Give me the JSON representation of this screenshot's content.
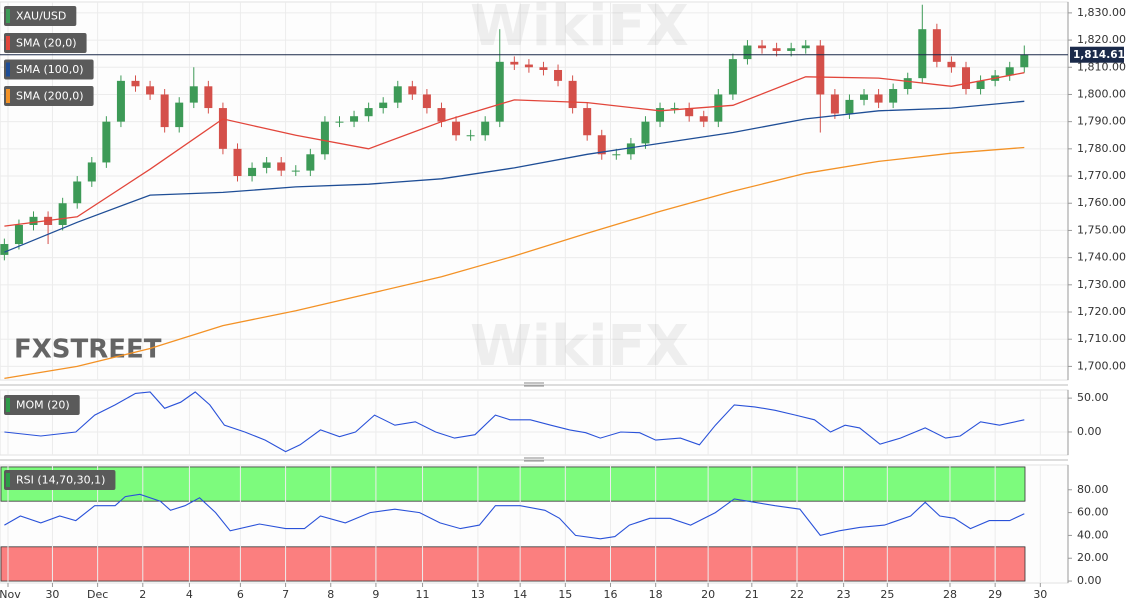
{
  "chart_data": [
    {
      "type": "candlestick",
      "title": "XAU/USD",
      "xlim": [
        -0.3,
        73.0
      ],
      "ylim": [
        1695,
        1834
      ],
      "yticks": [
        {
          "value": 1700,
          "label": "1,700.00"
        },
        {
          "value": 1710,
          "label": "1,710.00"
        },
        {
          "value": 1720,
          "label": "1,720.00"
        },
        {
          "value": 1730,
          "label": "1,730.00"
        },
        {
          "value": 1740,
          "label": "1,740.00"
        },
        {
          "value": 1750,
          "label": "1,750.00"
        },
        {
          "value": 1760,
          "label": "1,760.00"
        },
        {
          "value": 1770,
          "label": "1,770.00"
        },
        {
          "value": 1780,
          "label": "1,780.00"
        },
        {
          "value": 1790,
          "label": "1,790.00"
        },
        {
          "value": 1800,
          "label": "1,800.00"
        },
        {
          "value": 1810,
          "label": "1,810.00"
        },
        {
          "value": 1820,
          "label": "1,820.00"
        },
        {
          "value": 1830,
          "label": "1,830.00"
        }
      ],
      "grid": true,
      "up_color": "#3d9a57",
      "down_color": "#d4504a",
      "open": [
        1741,
        1745,
        1752,
        1755,
        1752,
        1760,
        1768,
        1775,
        1790,
        1805,
        1803,
        1800,
        1788,
        1797,
        1803,
        1795,
        1780,
        1770,
        1773,
        1775,
        1772,
        1772,
        1778,
        1790,
        1790,
        1792,
        1795,
        1797,
        1803,
        1800,
        1795,
        1790,
        1785,
        1785,
        1790,
        1812,
        1811,
        1810,
        1809,
        1805,
        1795,
        1785,
        1778,
        1778,
        1782,
        1790,
        1795,
        1795,
        1792,
        1790,
        1800,
        1813,
        1818,
        1817,
        1816,
        1817,
        1818,
        1800,
        1793,
        1798,
        1800,
        1797,
        1802,
        1806,
        1824,
        1812,
        1810,
        1802,
        1805,
        1807,
        1810
      ],
      "high": [
        1747,
        1754,
        1757,
        1757,
        1762,
        1770,
        1777,
        1792,
        1807,
        1807,
        1805,
        1802,
        1799,
        1810,
        1805,
        1797,
        1782,
        1775,
        1777,
        1777,
        1774,
        1780,
        1792,
        1792,
        1794,
        1797,
        1799,
        1805,
        1805,
        1802,
        1797,
        1792,
        1787,
        1792,
        1824,
        1814,
        1813,
        1812,
        1811,
        1807,
        1797,
        1787,
        1780,
        1784,
        1792,
        1797,
        1797,
        1797,
        1794,
        1802,
        1815,
        1820,
        1820,
        1819,
        1819,
        1820,
        1820,
        1802,
        1800,
        1802,
        1802,
        1804,
        1808,
        1833,
        1826,
        1814,
        1812,
        1807,
        1809,
        1812,
        1818
      ],
      "low": [
        1739,
        1743,
        1750,
        1745,
        1750,
        1758,
        1766,
        1773,
        1788,
        1801,
        1798,
        1786,
        1786,
        1795,
        1793,
        1778,
        1768,
        1768,
        1771,
        1770,
        1770,
        1770,
        1776,
        1788,
        1788,
        1790,
        1793,
        1795,
        1798,
        1793,
        1788,
        1783,
        1783,
        1783,
        1788,
        1809,
        1808,
        1807,
        1803,
        1793,
        1783,
        1776,
        1776,
        1776,
        1780,
        1788,
        1793,
        1790,
        1788,
        1788,
        1798,
        1811,
        1815,
        1814,
        1814,
        1815,
        1786,
        1791,
        1791,
        1796,
        1795,
        1795,
        1800,
        1804,
        1810,
        1808,
        1800,
        1800,
        1803,
        1805,
        1808
      ],
      "close": [
        1745,
        1752,
        1755,
        1752,
        1760,
        1768,
        1775,
        1790,
        1805,
        1803,
        1800,
        1788,
        1797,
        1803,
        1795,
        1780,
        1770,
        1773,
        1775,
        1772,
        1772,
        1778,
        1790,
        1790,
        1792,
        1795,
        1797,
        1803,
        1800,
        1795,
        1790,
        1785,
        1785,
        1790,
        1812,
        1811,
        1810,
        1809,
        1805,
        1795,
        1785,
        1778,
        1778,
        1782,
        1790,
        1795,
        1795,
        1792,
        1790,
        1800,
        1813,
        1818,
        1817,
        1816,
        1817,
        1818,
        1800,
        1793,
        1798,
        1800,
        1797,
        1802,
        1806,
        1824,
        1812,
        1810,
        1802,
        1805,
        1807,
        1810,
        1814.61
      ],
      "series": [
        {
          "name": "SMA (20,0)",
          "color": "#e2463b",
          "x": [
            0,
            5,
            10,
            15,
            20,
            25,
            30,
            35,
            40,
            45,
            50,
            55,
            60,
            65,
            70
          ],
          "values": [
            1751.6,
            1755,
            1772.5,
            1791,
            1785,
            1780,
            1790,
            1798,
            1797,
            1794,
            1796,
            1806.5,
            1806,
            1803,
            1808
          ]
        },
        {
          "name": "SMA (100,0)",
          "color": "#1f4e96",
          "x": [
            0,
            5,
            10,
            15,
            20,
            25,
            30,
            35,
            40,
            45,
            50,
            55,
            60,
            65,
            70
          ],
          "values": [
            1742,
            1753,
            1763,
            1764,
            1766,
            1767,
            1769,
            1773,
            1778,
            1782,
            1786,
            1791,
            1794,
            1795,
            1797.5
          ]
        },
        {
          "name": "SMA (200,0)",
          "color": "#f39226",
          "x": [
            0,
            5,
            10,
            15,
            20,
            25,
            30,
            35,
            40,
            45,
            50,
            55,
            60,
            65,
            70
          ],
          "values": [
            1695.6,
            1700,
            1706.6,
            1715,
            1720.5,
            1726.7,
            1733,
            1740.6,
            1749,
            1757,
            1764.4,
            1771,
            1775.4,
            1778.4,
            1780.5
          ]
        }
      ],
      "price_line": {
        "value": 1814.61,
        "label": "1,814.61",
        "color": "#1b2a4a"
      },
      "watermarks": [
        "WikiFX",
        "FXSTREET"
      ]
    },
    {
      "type": "line",
      "title": "MOM (20)",
      "color": "#2a52d9",
      "xlim": [
        -0.3,
        73.0
      ],
      "ylim": [
        -34,
        62
      ],
      "yticks": [
        {
          "value": 0,
          "label": "0.00"
        },
        {
          "value": 50,
          "label": "50.00"
        }
      ],
      "grid": true,
      "x": [
        0,
        2.5,
        4.9,
        6.2,
        7.6,
        9.0,
        10.0,
        11.0,
        12.1,
        13.1,
        14.1,
        15.1,
        16.5,
        17.9,
        19.3,
        20.3,
        21.7,
        23.0,
        24.1,
        25.4,
        26.8,
        28.2,
        29.6,
        30.9,
        32.3,
        33.7,
        34.7,
        36.1,
        37.5,
        38.8,
        39.9,
        40.9,
        42.3,
        43.6,
        44.7,
        46.4,
        47.7,
        48.8,
        50.1,
        51.5,
        52.9,
        54.3,
        55.6,
        56.7,
        57.7,
        58.7,
        60.1,
        61.5,
        63.2,
        64.6,
        65.6,
        67.0,
        68.3,
        70.0
      ],
      "values": [
        0,
        -6,
        0,
        25,
        40,
        57,
        59,
        35,
        44,
        59,
        40,
        10,
        0,
        -12,
        -29,
        -19,
        3,
        -7,
        0,
        25,
        10,
        15,
        0,
        -9,
        -4,
        25,
        18,
        18,
        10,
        3,
        -1,
        -9,
        0,
        -1,
        -12,
        -9,
        -19,
        10,
        40,
        37,
        32,
        25,
        18,
        0,
        10,
        6,
        -18,
        -9,
        6,
        -9,
        -6,
        15,
        10,
        18
      ]
    },
    {
      "type": "line",
      "title": "RSI (14,70,30,1)",
      "color": "#2a52d9",
      "xlim": [
        -0.3,
        73.0
      ],
      "ylim": [
        -1.7,
        101.7
      ],
      "yticks": [
        {
          "value": 0,
          "label": "0.00"
        },
        {
          "value": 20,
          "label": "20.00"
        },
        {
          "value": 40,
          "label": "40.00"
        },
        {
          "value": 60,
          "label": "60.00"
        },
        {
          "value": 80,
          "label": "80.00"
        }
      ],
      "grid": true,
      "bands": [
        {
          "from": 70,
          "to": 100,
          "color": "#7dfb7d"
        },
        {
          "from": 0,
          "to": 30,
          "color": "#fb7f7f"
        }
      ],
      "xticks": [
        {
          "value": 0.25,
          "label": "Nov"
        },
        {
          "value": 3.3,
          "label": "30"
        },
        {
          "value": 6.4,
          "label": "Dec"
        },
        {
          "value": 9.5,
          "label": "2"
        },
        {
          "value": 12.7,
          "label": "4"
        },
        {
          "value": 16.2,
          "label": "6"
        },
        {
          "value": 19.3,
          "label": "7"
        },
        {
          "value": 22.4,
          "label": "8"
        },
        {
          "value": 25.5,
          "label": "9"
        },
        {
          "value": 28.7,
          "label": "11"
        },
        {
          "value": 32.5,
          "label": "13"
        },
        {
          "value": 35.4,
          "label": "14"
        },
        {
          "value": 38.5,
          "label": "15"
        },
        {
          "value": 41.6,
          "label": "16"
        },
        {
          "value": 44.7,
          "label": "18"
        },
        {
          "value": 48.3,
          "label": "20"
        },
        {
          "value": 51.3,
          "label": "21"
        },
        {
          "value": 54.4,
          "label": "22"
        },
        {
          "value": 57.6,
          "label": "23"
        },
        {
          "value": 60.6,
          "label": "25"
        },
        {
          "value": 64.9,
          "label": "28"
        },
        {
          "value": 68.0,
          "label": "29"
        },
        {
          "value": 71.1,
          "label": "30"
        }
      ],
      "x": [
        0,
        1.1,
        2.5,
        3.8,
        4.9,
        6.2,
        7.6,
        8.3,
        9.3,
        10.7,
        11.4,
        12.4,
        13.4,
        14.5,
        15.5,
        17.5,
        19.3,
        20.6,
        21.7,
        23.4,
        25.1,
        26.8,
        28.5,
        29.9,
        31.3,
        32.6,
        33.7,
        35.4,
        37.1,
        38.1,
        39.2,
        40.9,
        41.9,
        42.9,
        44.3,
        45.7,
        47.1,
        48.8,
        50.1,
        51.5,
        52.9,
        54.6,
        56.0,
        57.3,
        58.7,
        60.4,
        62.2,
        63.2,
        64.2,
        65.2,
        66.3,
        67.6,
        69.0,
        70.0
      ],
      "values": [
        49,
        57,
        51,
        57,
        53,
        66,
        66,
        74,
        76,
        70,
        62,
        66,
        73,
        60,
        44,
        50,
        46,
        46,
        57,
        51,
        60,
        63,
        60,
        51,
        46,
        49,
        66,
        66,
        62,
        55,
        40,
        37,
        39,
        49,
        55,
        55,
        49,
        60,
        72,
        69,
        66,
        63,
        40,
        44,
        47,
        49,
        57,
        69,
        57,
        55,
        46,
        53,
        53,
        59
      ]
    }
  ]
}
